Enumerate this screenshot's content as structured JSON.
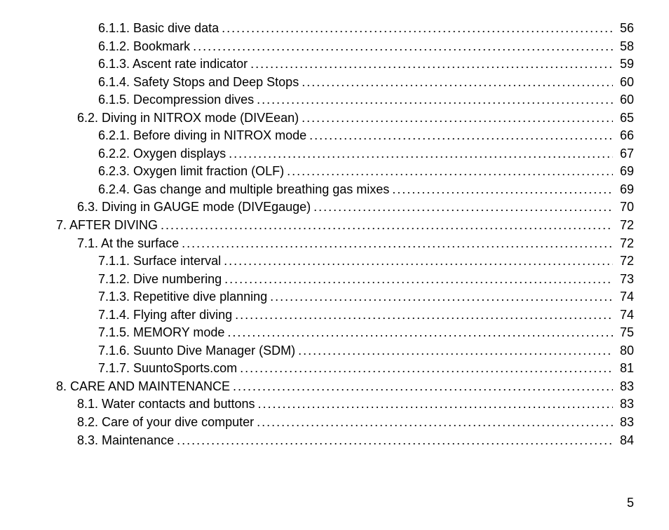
{
  "pageNumber": "5",
  "fontSize": 18,
  "lineHeight": 1.42,
  "textColor": "#000000",
  "backgroundColor": "#ffffff",
  "indentStepPx": 30,
  "baseIndentPx": 30,
  "entries": [
    {
      "indent": 2,
      "label": "6.1.1. Basic dive data",
      "page": "56"
    },
    {
      "indent": 2,
      "label": "6.1.2. Bookmark",
      "page": "58"
    },
    {
      "indent": 2,
      "label": "6.1.3. Ascent rate indicator",
      "page": "59"
    },
    {
      "indent": 2,
      "label": "6.1.4. Safety Stops and Deep Stops",
      "page": "60"
    },
    {
      "indent": 2,
      "label": "6.1.5. Decompression dives",
      "page": "60"
    },
    {
      "indent": 1,
      "label": "6.2. Diving in NITROX mode (DIVEean)",
      "page": "65"
    },
    {
      "indent": 2,
      "label": "6.2.1. Before diving in NITROX mode",
      "page": "66"
    },
    {
      "indent": 2,
      "label": "6.2.2. Oxygen displays",
      "page": "67"
    },
    {
      "indent": 2,
      "label": "6.2.3. Oxygen limit fraction (OLF)",
      "page": "69"
    },
    {
      "indent": 2,
      "label": "6.2.4. Gas change and multiple breathing gas mixes",
      "page": "69"
    },
    {
      "indent": 1,
      "label": "6.3. Diving in GAUGE mode (DIVEgauge)",
      "page": "70"
    },
    {
      "indent": 0,
      "label": "7. AFTER DIVING",
      "page": "72"
    },
    {
      "indent": 1,
      "label": "7.1. At the surface",
      "page": "72"
    },
    {
      "indent": 2,
      "label": "7.1.1. Surface interval",
      "page": "72"
    },
    {
      "indent": 2,
      "label": "7.1.2. Dive numbering",
      "page": "73"
    },
    {
      "indent": 2,
      "label": "7.1.3. Repetitive dive planning",
      "page": "74"
    },
    {
      "indent": 2,
      "label": "7.1.4. Flying after diving",
      "page": "74"
    },
    {
      "indent": 2,
      "label": "7.1.5. MEMORY mode",
      "page": "75"
    },
    {
      "indent": 2,
      "label": "7.1.6. Suunto Dive Manager (SDM)",
      "page": "80"
    },
    {
      "indent": 2,
      "label": "7.1.7. SuuntoSports.com",
      "page": "81"
    },
    {
      "indent": 0,
      "label": "8. CARE AND MAINTENANCE",
      "page": "83"
    },
    {
      "indent": 1,
      "label": "8.1. Water contacts and buttons",
      "page": "83"
    },
    {
      "indent": 1,
      "label": "8.2. Care of your dive computer",
      "page": "83"
    },
    {
      "indent": 1,
      "label": "8.3. Maintenance",
      "page": "84"
    }
  ]
}
